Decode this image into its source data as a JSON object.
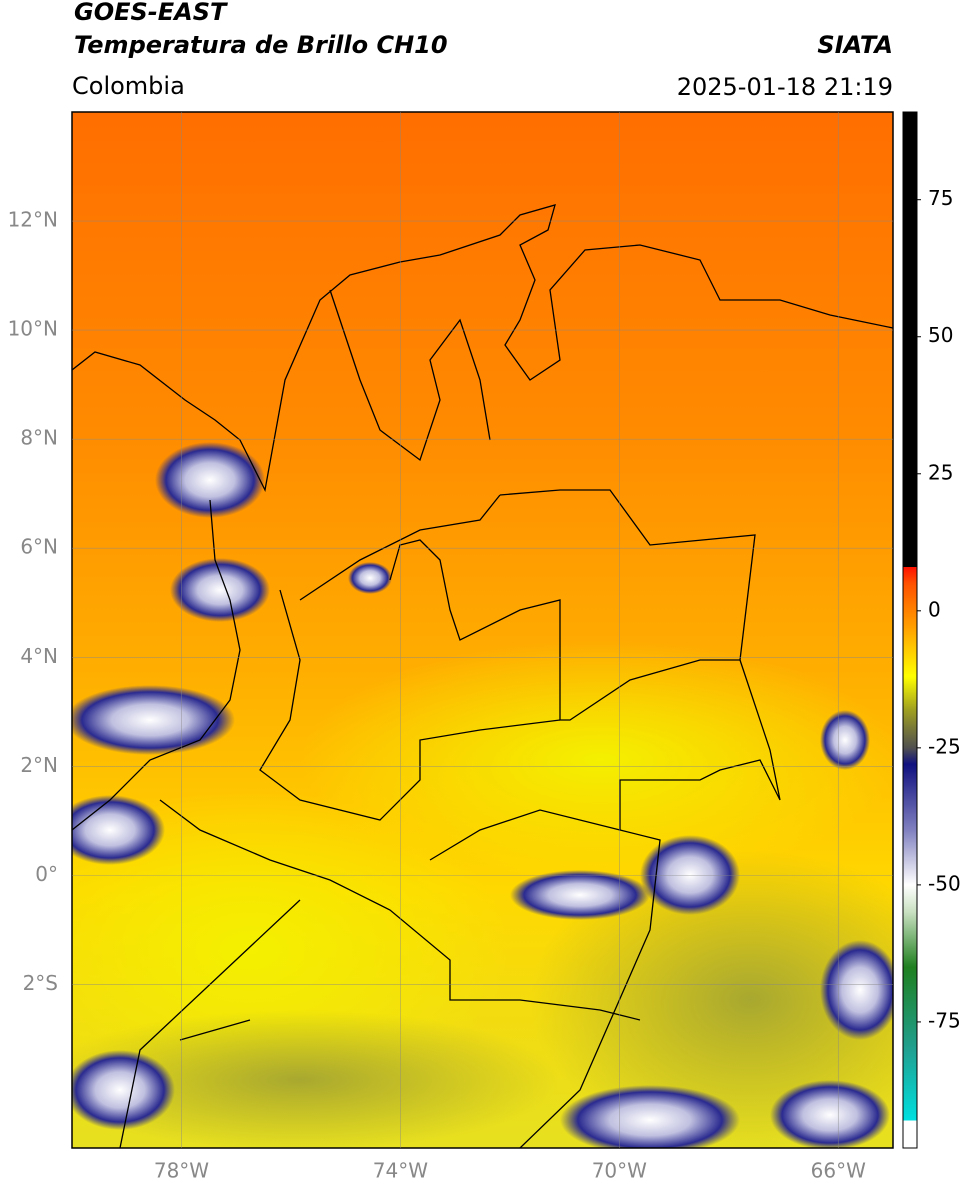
{
  "header": {
    "line1": "GOES-EAST",
    "line2": "Temperatura de Brillo CH10",
    "source": "SIATA",
    "region": "Colombia",
    "datetime": "2025-01-18 21:19"
  },
  "map": {
    "lon_range": [
      -80,
      -65
    ],
    "lat_range": [
      -5,
      14
    ],
    "lon_ticks": [
      {
        "value": -78,
        "label": "78°W"
      },
      {
        "value": -74,
        "label": "74°W"
      },
      {
        "value": -70,
        "label": "70°W"
      },
      {
        "value": -66,
        "label": "66°W"
      }
    ],
    "lat_ticks": [
      {
        "value": 12,
        "label": "12°N"
      },
      {
        "value": 10,
        "label": "10°N"
      },
      {
        "value": 8,
        "label": "8°N"
      },
      {
        "value": 6,
        "label": "6°N"
      },
      {
        "value": 4,
        "label": "4°N"
      },
      {
        "value": 2,
        "label": "2°N"
      },
      {
        "value": 0,
        "label": "0°"
      },
      {
        "value": -2,
        "label": "2°S"
      }
    ],
    "grid": true
  },
  "colorbar": {
    "range": [
      -98,
      91
    ],
    "ticks": [
      75,
      50,
      25,
      0,
      -25,
      -50,
      -75
    ],
    "colorscale": [
      [
        91,
        "#000000"
      ],
      [
        8,
        "#000000"
      ],
      [
        8,
        "#ff1000"
      ],
      [
        5,
        "#ff5000"
      ],
      [
        -3,
        "#ffa000"
      ],
      [
        -12,
        "#ffff00"
      ],
      [
        -18,
        "#a0a020"
      ],
      [
        -25,
        "#505050"
      ],
      [
        -28,
        "#101080"
      ],
      [
        -40,
        "#8080c0"
      ],
      [
        -50,
        "#ffffff"
      ],
      [
        -55,
        "#c8e0c0"
      ],
      [
        -65,
        "#208020"
      ],
      [
        -80,
        "#20a090"
      ],
      [
        -93,
        "#00e0e0"
      ],
      [
        -93,
        "#ffffff"
      ],
      [
        -98,
        "#ffffff"
      ]
    ]
  }
}
